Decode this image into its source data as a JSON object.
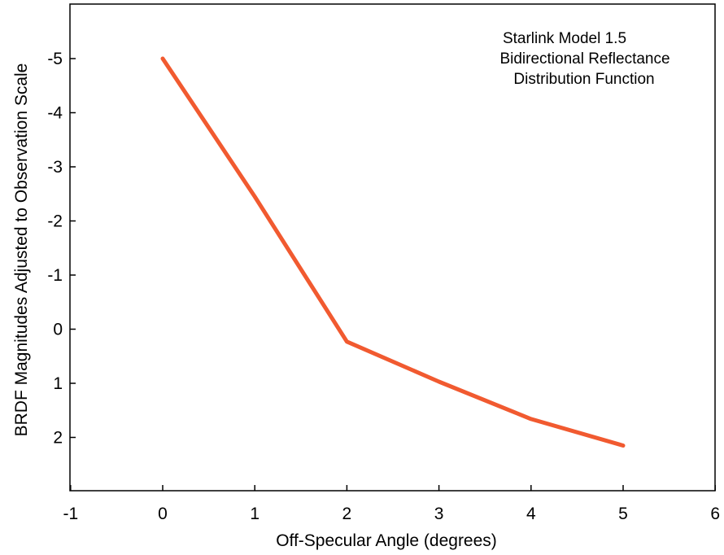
{
  "chart_data": {
    "type": "line",
    "title_lines": [
      "Starlink Model 1.5",
      "Bidirectional Reflectance",
      "Distribution Function"
    ],
    "xlabel": "Off-Specular Angle (degrees)",
    "ylabel": "BRDF Magnitudes Adjusted to Observation Scale",
    "xlim": [
      -1,
      6
    ],
    "ylim": [
      3,
      -6
    ],
    "y_inverted": true,
    "x_ticks": [
      -1,
      0,
      1,
      2,
      3,
      4,
      5,
      6
    ],
    "y_ticks": [
      -5,
      -4,
      -3,
      -2,
      -1,
      0,
      1,
      2
    ],
    "grid": false,
    "series": [
      {
        "color": "#f15a30",
        "x": [
          0,
          1,
          2,
          3,
          4,
          5
        ],
        "y": [
          -5.0,
          -2.45,
          0.23,
          0.97,
          1.66,
          2.15
        ]
      }
    ]
  }
}
